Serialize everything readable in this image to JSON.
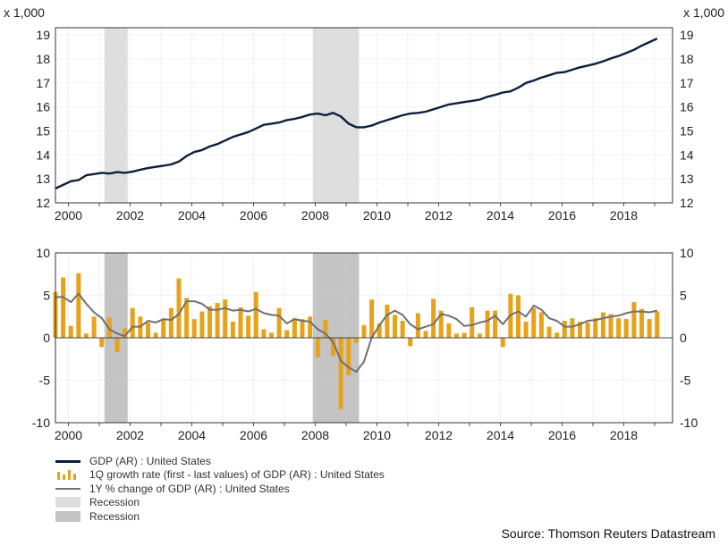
{
  "chart_data": [
    {
      "type": "line",
      "title": "",
      "unit_label": "x 1,000",
      "ylim": [
        12,
        19.3
      ],
      "yticks": [
        "12",
        "13",
        "14",
        "15",
        "16",
        "17",
        "18",
        "19"
      ],
      "xlim": [
        1999.58,
        2019.58
      ],
      "xticks": [
        "2000",
        "2002",
        "2004",
        "2006",
        "2008",
        "2010",
        "2012",
        "2014",
        "2016",
        "2018"
      ],
      "recessions": [
        {
          "name": "Recession",
          "start": 2001.17,
          "end": 2001.92
        },
        {
          "name": "Recession",
          "start": 2007.92,
          "end": 2009.42
        }
      ],
      "series": [
        {
          "name": "GDP (AR) : United States",
          "color": "#0d1f3c",
          "x": [
            1999.58,
            1999.83,
            2000.08,
            2000.33,
            2000.58,
            2000.83,
            2001.08,
            2001.33,
            2001.58,
            2001.83,
            2002.08,
            2002.33,
            2002.58,
            2002.83,
            2003.08,
            2003.33,
            2003.58,
            2003.83,
            2004.08,
            2004.33,
            2004.58,
            2004.83,
            2005.08,
            2005.33,
            2005.58,
            2005.83,
            2006.08,
            2006.33,
            2006.58,
            2006.83,
            2007.08,
            2007.33,
            2007.58,
            2007.83,
            2008.08,
            2008.33,
            2008.58,
            2008.83,
            2009.08,
            2009.33,
            2009.58,
            2009.83,
            2010.08,
            2010.33,
            2010.58,
            2010.83,
            2011.08,
            2011.33,
            2011.58,
            2011.83,
            2012.08,
            2012.33,
            2012.58,
            2012.83,
            2013.08,
            2013.33,
            2013.58,
            2013.83,
            2014.08,
            2014.33,
            2014.58,
            2014.83,
            2015.08,
            2015.33,
            2015.58,
            2015.83,
            2016.08,
            2016.33,
            2016.58,
            2016.83,
            2017.08,
            2017.33,
            2017.58,
            2017.83,
            2018.08,
            2018.33,
            2018.58,
            2018.83,
            2019.08
          ],
          "values": [
            12.6,
            12.75,
            12.9,
            12.95,
            13.15,
            13.2,
            13.25,
            13.22,
            13.28,
            13.25,
            13.3,
            13.38,
            13.45,
            13.5,
            13.55,
            13.6,
            13.72,
            13.95,
            14.12,
            14.2,
            14.35,
            14.45,
            14.6,
            14.75,
            14.85,
            14.95,
            15.1,
            15.25,
            15.3,
            15.35,
            15.45,
            15.5,
            15.58,
            15.68,
            15.72,
            15.65,
            15.75,
            15.6,
            15.3,
            15.15,
            15.15,
            15.22,
            15.35,
            15.45,
            15.55,
            15.65,
            15.72,
            15.75,
            15.8,
            15.9,
            16.0,
            16.1,
            16.15,
            16.2,
            16.25,
            16.3,
            16.42,
            16.5,
            16.6,
            16.65,
            16.8,
            17.0,
            17.1,
            17.22,
            17.32,
            17.42,
            17.45,
            17.55,
            17.65,
            17.72,
            17.8,
            17.9,
            18.02,
            18.12,
            18.25,
            18.38,
            18.55,
            18.7,
            18.85
          ]
        }
      ]
    },
    {
      "type": "bar",
      "title": "",
      "ylim": [
        -10,
        10
      ],
      "yticks": [
        "-10",
        "-5",
        "0",
        "5",
        "10"
      ],
      "xlim": [
        1999.58,
        2019.58
      ],
      "xticks": [
        "2000",
        "2002",
        "2004",
        "2006",
        "2008",
        "2010",
        "2012",
        "2014",
        "2016",
        "2018"
      ],
      "recessions": [
        {
          "name": "Recession",
          "start": 2001.17,
          "end": 2001.92
        },
        {
          "name": "Recession",
          "start": 2007.92,
          "end": 2009.42
        }
      ],
      "series": [
        {
          "name": "1Q growth rate (first - last values) of GDP (AR) : United States",
          "type": "bar",
          "color": "#e8a21a",
          "x": [
            1999.58,
            1999.83,
            2000.08,
            2000.33,
            2000.58,
            2000.83,
            2001.08,
            2001.33,
            2001.58,
            2001.83,
            2002.08,
            2002.33,
            2002.58,
            2002.83,
            2003.08,
            2003.33,
            2003.58,
            2003.83,
            2004.08,
            2004.33,
            2004.58,
            2004.83,
            2005.08,
            2005.33,
            2005.58,
            2005.83,
            2006.08,
            2006.33,
            2006.58,
            2006.83,
            2007.08,
            2007.33,
            2007.58,
            2007.83,
            2008.08,
            2008.33,
            2008.58,
            2008.83,
            2009.08,
            2009.33,
            2009.58,
            2009.83,
            2010.08,
            2010.33,
            2010.58,
            2010.83,
            2011.08,
            2011.33,
            2011.58,
            2011.83,
            2012.08,
            2012.33,
            2012.58,
            2012.83,
            2013.08,
            2013.33,
            2013.58,
            2013.83,
            2014.08,
            2014.33,
            2014.58,
            2014.83,
            2015.08,
            2015.33,
            2015.58,
            2015.83,
            2016.08,
            2016.33,
            2016.58,
            2016.83,
            2017.08,
            2017.33,
            2017.58,
            2017.83,
            2018.08,
            2018.33,
            2018.58,
            2018.83,
            2019.08
          ],
          "values": [
            5.4,
            7.1,
            1.4,
            7.6,
            0.5,
            2.5,
            -1.1,
            2.4,
            -1.7,
            1.1,
            3.5,
            2.5,
            1.8,
            0.6,
            2.1,
            3.5,
            7.0,
            4.7,
            2.2,
            3.1,
            3.7,
            4.1,
            4.5,
            1.9,
            3.6,
            2.6,
            5.4,
            1.0,
            0.6,
            3.5,
            0.9,
            2.3,
            2.2,
            2.5,
            -2.3,
            2.1,
            -2.1,
            -8.4,
            -4.4,
            -0.6,
            1.5,
            4.5,
            1.7,
            3.9,
            2.7,
            2.0,
            -1.0,
            2.9,
            0.8,
            4.6,
            3.2,
            1.7,
            0.5,
            0.6,
            3.6,
            0.5,
            3.2,
            3.2,
            -1.1,
            5.2,
            5.0,
            1.9,
            3.5,
            3.0,
            1.3,
            0.6,
            2.0,
            2.3,
            1.9,
            1.8,
            2.3,
            3.0,
            2.8,
            2.3,
            2.2,
            4.2,
            3.4,
            2.2,
            3.1
          ]
        },
        {
          "name": "1Y % change of GDP (AR) : United States",
          "type": "line",
          "color": "#707070",
          "x": [
            1999.58,
            1999.83,
            2000.08,
            2000.33,
            2000.58,
            2000.83,
            2001.08,
            2001.33,
            2001.58,
            2001.83,
            2002.08,
            2002.33,
            2002.58,
            2002.83,
            2003.08,
            2003.33,
            2003.58,
            2003.83,
            2004.08,
            2004.33,
            2004.58,
            2004.83,
            2005.08,
            2005.33,
            2005.58,
            2005.83,
            2006.08,
            2006.33,
            2006.58,
            2006.83,
            2007.08,
            2007.33,
            2007.58,
            2007.83,
            2008.08,
            2008.33,
            2008.58,
            2008.83,
            2009.08,
            2009.33,
            2009.58,
            2009.83,
            2010.08,
            2010.33,
            2010.58,
            2010.83,
            2011.08,
            2011.33,
            2011.58,
            2011.83,
            2012.08,
            2012.33,
            2012.58,
            2012.83,
            2013.08,
            2013.33,
            2013.58,
            2013.83,
            2014.08,
            2014.33,
            2014.58,
            2014.83,
            2015.08,
            2015.33,
            2015.58,
            2015.83,
            2016.08,
            2016.33,
            2016.58,
            2016.83,
            2017.08,
            2017.33,
            2017.58,
            2017.83,
            2018.08,
            2018.33,
            2018.58,
            2018.83,
            2019.08
          ],
          "values": [
            4.8,
            4.8,
            4.2,
            5.2,
            4.0,
            3.0,
            2.3,
            1.0,
            0.5,
            0.2,
            1.3,
            1.3,
            2.0,
            1.8,
            2.2,
            2.1,
            2.8,
            4.3,
            4.3,
            4.0,
            3.3,
            3.3,
            3.5,
            3.2,
            3.3,
            3.1,
            3.4,
            2.9,
            2.7,
            2.6,
            1.7,
            2.2,
            2.0,
            1.9,
            1.0,
            0.5,
            -0.5,
            -2.7,
            -3.5,
            -4.0,
            -2.8,
            0.0,
            1.5,
            2.7,
            3.2,
            2.7,
            1.6,
            1.0,
            1.3,
            1.6,
            2.8,
            2.6,
            2.2,
            1.4,
            1.5,
            1.8,
            2.0,
            2.6,
            1.6,
            2.7,
            3.1,
            2.5,
            3.8,
            3.3,
            2.3,
            2.0,
            1.3,
            1.3,
            1.6,
            2.0,
            2.1,
            2.3,
            2.5,
            2.6,
            2.9,
            3.1,
            3.1,
            3.0,
            3.2
          ]
        }
      ]
    }
  ],
  "legend": {
    "items": [
      {
        "label": "GDP (AR) : United States"
      },
      {
        "label": "1Q growth rate (first - last values) of GDP (AR) : United States"
      },
      {
        "label": "1Y % change of GDP (AR) : United States"
      },
      {
        "label": "Recession"
      },
      {
        "label": "Recession"
      }
    ]
  },
  "source": "Source: Thomson Reuters Datastream",
  "colors": {
    "gdp_line": "#0d1f3c",
    "bars": "#e8a21a",
    "yoy_line": "#707070",
    "recession_light": "#dedede",
    "recession_dark": "#c4c4c4"
  }
}
